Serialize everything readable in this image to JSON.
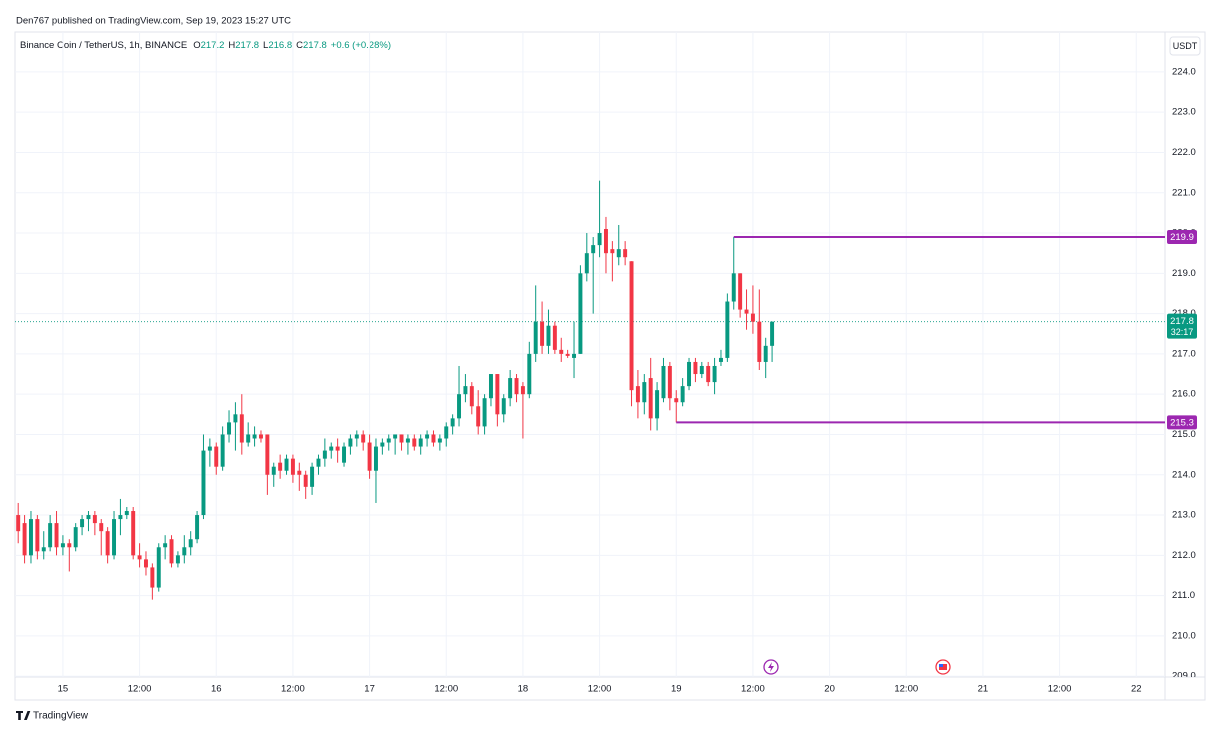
{
  "publisher": "Den767 published on TradingView.com, Sep 19, 2023 15:27 UTC",
  "brand": "TradingView",
  "chart_data": {
    "type": "candlestick",
    "title": "Binance Coin / TetherUS, 1h, BINANCE",
    "ohlc_header": [
      {
        "label": "O",
        "value": 217.2
      },
      {
        "label": "H",
        "value": 217.8
      },
      {
        "label": "L",
        "value": 216.8
      },
      {
        "label": "C",
        "value": 217.8
      }
    ],
    "change_text": "+0.6 (+0.28%)",
    "currency": "USDT",
    "up_color": "#089981",
    "down_color": "#f23645",
    "level_color": "#9c27b0",
    "grid": true,
    "open": [
      213.0,
      212.8,
      212.0,
      212.9,
      212.1,
      212.2,
      212.8,
      212.2,
      212.3,
      212.2,
      212.7,
      212.9,
      213.0,
      212.8,
      212.6,
      212.0,
      212.9,
      213.0,
      213.1,
      212.0,
      211.9,
      211.7,
      211.2,
      212.2,
      212.4,
      211.8,
      212.0,
      212.2,
      212.4,
      213.0,
      214.6,
      214.7,
      214.2,
      215.0,
      215.3,
      215.5,
      214.8,
      214.9,
      215.0,
      215.0,
      214.0,
      214.3,
      214.1,
      214.4,
      214.1,
      214.0,
      213.7,
      214.2,
      214.4,
      214.6,
      214.7,
      214.3,
      214.7,
      214.9,
      215.0,
      214.8,
      214.1,
      214.7,
      214.8,
      214.9,
      215.0,
      214.8,
      214.9,
      214.7,
      214.9,
      215.0,
      214.8,
      214.9,
      215.2,
      215.4,
      216.0,
      216.2,
      215.7,
      215.2,
      215.9,
      216.5,
      215.5,
      215.9,
      216.4,
      216.2,
      216.0,
      217.0,
      217.8,
      217.2,
      217.7,
      217.1,
      217.0,
      216.9,
      217.0,
      219.0,
      219.5,
      219.7,
      220.1,
      219.6,
      219.4,
      219.6,
      219.3,
      216.2,
      215.8,
      216.4,
      215.4,
      215.9,
      216.7,
      215.9,
      215.8,
      216.2,
      216.8,
      216.5,
      216.7,
      216.3,
      216.8,
      216.9,
      218.3,
      219.0,
      218.1,
      218.0,
      217.8,
      216.8,
      217.2
    ],
    "high": [
      213.3,
      213.0,
      213.1,
      213.0,
      212.6,
      213.0,
      213.1,
      212.5,
      212.4,
      212.8,
      213.0,
      213.1,
      213.1,
      212.9,
      212.7,
      213.1,
      213.4,
      213.2,
      213.2,
      212.3,
      212.1,
      211.8,
      212.3,
      212.5,
      212.5,
      212.1,
      212.5,
      212.6,
      213.1,
      215.0,
      214.9,
      214.8,
      215.2,
      215.6,
      215.8,
      216.0,
      215.3,
      215.2,
      215.1,
      215.0,
      214.3,
      214.5,
      214.5,
      214.5,
      214.3,
      214.1,
      214.3,
      214.5,
      214.9,
      214.8,
      214.9,
      214.8,
      215.0,
      215.1,
      215.1,
      215.0,
      214.9,
      214.9,
      215.0,
      215.0,
      215.0,
      215.0,
      215.0,
      215.0,
      215.1,
      215.1,
      215.0,
      215.3,
      215.5,
      216.7,
      216.5,
      216.3,
      216.1,
      216.0,
      216.5,
      216.5,
      216.0,
      216.6,
      216.5,
      216.3,
      217.3,
      218.7,
      218.3,
      218.1,
      217.8,
      217.4,
      217.1,
      217.8,
      219.2,
      220.0,
      219.9,
      221.3,
      220.4,
      219.8,
      220.2,
      219.8,
      219.3,
      216.6,
      216.5,
      216.9,
      216.3,
      216.9,
      216.8,
      216.1,
      216.4,
      216.9,
      216.9,
      216.8,
      216.8,
      216.9,
      217.1,
      218.5,
      219.9,
      219.0,
      218.6,
      218.7,
      218.6,
      217.4,
      217.8
    ],
    "low": [
      212.3,
      211.8,
      211.8,
      211.9,
      211.9,
      212.1,
      212.0,
      212.0,
      211.6,
      212.1,
      212.5,
      212.6,
      212.5,
      212.0,
      211.8,
      211.9,
      212.5,
      212.9,
      211.9,
      211.7,
      211.5,
      210.9,
      211.1,
      211.9,
      211.7,
      211.7,
      211.8,
      212.0,
      212.3,
      212.9,
      214.2,
      214.0,
      214.1,
      214.8,
      214.6,
      214.5,
      214.7,
      214.7,
      214.8,
      213.5,
      213.7,
      213.9,
      214.0,
      213.8,
      213.6,
      213.4,
      213.5,
      214.0,
      214.2,
      214.4,
      214.3,
      214.2,
      214.5,
      214.7,
      214.6,
      213.9,
      213.3,
      214.5,
      214.6,
      214.5,
      214.6,
      214.5,
      214.6,
      214.5,
      214.7,
      214.7,
      214.6,
      214.7,
      215.0,
      215.2,
      215.8,
      215.5,
      215.0,
      215.0,
      215.7,
      215.2,
      215.3,
      215.7,
      215.8,
      214.9,
      215.9,
      216.8,
      217.0,
      217.0,
      217.0,
      216.8,
      216.9,
      216.4,
      217.0,
      218.8,
      218.0,
      219.4,
      219.0,
      218.8,
      219.2,
      219.2,
      215.7,
      215.4,
      215.5,
      215.1,
      215.1,
      215.8,
      215.6,
      215.3,
      215.7,
      216.1,
      216.3,
      216.4,
      216.2,
      216.0,
      216.7,
      216.8,
      218.1,
      217.9,
      217.6,
      217.5,
      216.6,
      216.4,
      216.8
    ],
    "close": [
      212.6,
      212.0,
      212.9,
      212.1,
      212.2,
      212.8,
      212.2,
      212.3,
      212.2,
      212.7,
      212.9,
      213.0,
      212.8,
      212.6,
      212.0,
      212.9,
      213.0,
      213.1,
      212.0,
      211.9,
      211.7,
      211.2,
      212.2,
      212.3,
      211.8,
      212.0,
      212.2,
      212.4,
      213.0,
      214.6,
      214.7,
      214.2,
      215.0,
      215.3,
      215.5,
      214.8,
      215.0,
      215.0,
      214.9,
      214.0,
      214.2,
      214.1,
      214.4,
      214.0,
      214.0,
      213.7,
      214.2,
      214.4,
      214.6,
      214.7,
      214.6,
      214.7,
      214.9,
      215.0,
      214.8,
      214.1,
      214.7,
      214.8,
      214.9,
      215.0,
      214.8,
      214.9,
      214.7,
      214.9,
      215.0,
      214.8,
      214.9,
      215.2,
      215.4,
      216.0,
      216.2,
      215.7,
      215.2,
      215.9,
      216.5,
      215.5,
      215.9,
      216.4,
      216.0,
      216.0,
      217.0,
      217.8,
      217.2,
      217.7,
      217.1,
      217.0,
      216.95,
      217.0,
      219.0,
      219.5,
      219.7,
      220.0,
      219.5,
      219.5,
      219.6,
      219.4,
      216.1,
      215.8,
      216.3,
      215.4,
      216.1,
      216.7,
      215.9,
      215.8,
      216.2,
      216.8,
      216.5,
      216.7,
      216.3,
      216.7,
      216.9,
      218.3,
      219.0,
      218.1,
      218.0,
      217.8,
      216.8,
      217.2,
      217.8
    ],
    "xlim": [
      -0.5,
      179.5
    ],
    "xticks": [
      {
        "value": 7,
        "label": "15"
      },
      {
        "value": 19,
        "label": "12:00"
      },
      {
        "value": 31,
        "label": "16"
      },
      {
        "value": 43,
        "label": "12:00"
      },
      {
        "value": 55,
        "label": "17"
      },
      {
        "value": 67,
        "label": "12:00"
      },
      {
        "value": 79,
        "label": "18"
      },
      {
        "value": 91,
        "label": "12:00"
      },
      {
        "value": 103,
        "label": "19"
      },
      {
        "value": 115,
        "label": "12:00"
      },
      {
        "value": 127,
        "label": "20"
      },
      {
        "value": 139,
        "label": "12:00"
      },
      {
        "value": 151,
        "label": "21"
      },
      {
        "value": 163,
        "label": "12:00"
      },
      {
        "value": 175,
        "label": "22"
      }
    ],
    "ylim": [
      208.98,
      224.99
    ],
    "yticks": [
      {
        "value": 224,
        "label": "224.0"
      },
      {
        "value": 223,
        "label": "223.0"
      },
      {
        "value": 222,
        "label": "222.0"
      },
      {
        "value": 221,
        "label": "221.0"
      },
      {
        "value": 220,
        "label": "220.0"
      },
      {
        "value": 219,
        "label": "219.0"
      },
      {
        "value": 218,
        "label": "218.0"
      },
      {
        "value": 217,
        "label": "217.0"
      },
      {
        "value": 216,
        "label": "216.0"
      },
      {
        "value": 215,
        "label": "215.0"
      },
      {
        "value": 214,
        "label": "214.0"
      },
      {
        "value": 213,
        "label": "213.0"
      },
      {
        "value": 212,
        "label": "212.0"
      },
      {
        "value": 211,
        "label": "211.0"
      },
      {
        "value": 210,
        "label": "210.0"
      },
      {
        "value": 209,
        "label": "209.0"
      }
    ],
    "levels": [
      {
        "value": 219.9,
        "x": 112
      },
      {
        "value": 215.3,
        "x": 103
      }
    ],
    "last_price": {
      "value": 217.8,
      "countdown": "32:17"
    }
  }
}
